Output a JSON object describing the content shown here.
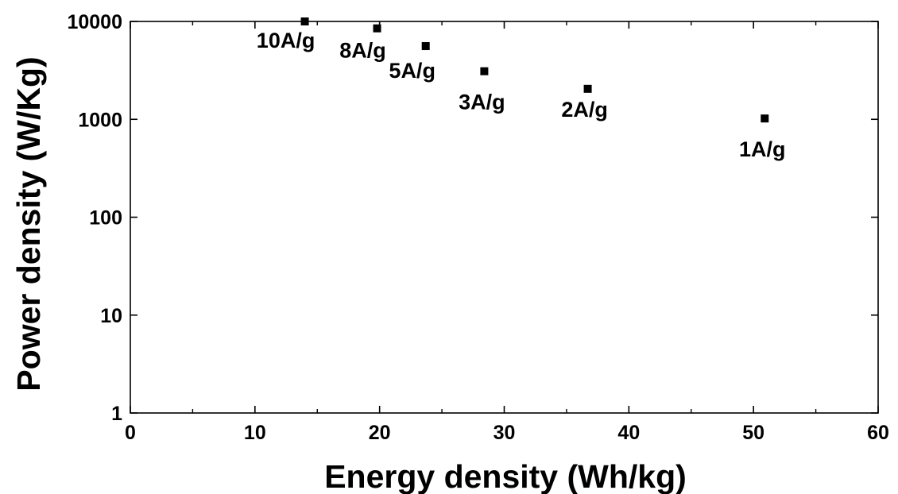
{
  "chart_data": {
    "type": "scatter",
    "title": "",
    "xlabel": "Energy density (Wh/kg)",
    "ylabel": "Power density (W/Kg)",
    "xlim": [
      0,
      60
    ],
    "ylim": [
      1,
      10000
    ],
    "yscale": "log",
    "grid": false,
    "x_ticks": [
      0,
      10,
      20,
      30,
      40,
      50,
      60
    ],
    "y_ticks": [
      1,
      10,
      100,
      1000,
      10000
    ],
    "x_tick_labels": [
      "0",
      "10",
      "20",
      "30",
      "40",
      "50",
      "60"
    ],
    "y_tick_labels": [
      "1",
      "10",
      "100",
      "1000",
      "10000"
    ],
    "marker": "square",
    "marker_color": "#000000",
    "points": [
      {
        "x": 14.0,
        "y": 10000,
        "label": "10A/g"
      },
      {
        "x": 19.8,
        "y": 8500,
        "label": "8A/g"
      },
      {
        "x": 23.7,
        "y": 5600,
        "label": "5A/g"
      },
      {
        "x": 28.4,
        "y": 3100,
        "label": "3A/g"
      },
      {
        "x": 36.7,
        "y": 2050,
        "label": "2A/g"
      },
      {
        "x": 50.9,
        "y": 1020,
        "label": "1A/g"
      }
    ]
  }
}
